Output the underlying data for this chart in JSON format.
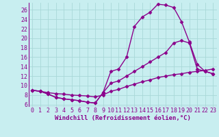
{
  "background_color": "#c8eef0",
  "grid_color": "#a8d8d8",
  "line_color": "#8b008b",
  "marker": "D",
  "markersize": 2.5,
  "linewidth": 1.0,
  "xlim": [
    -0.5,
    23.5
  ],
  "ylim": [
    5.5,
    27.5
  ],
  "yticks": [
    6,
    8,
    10,
    12,
    14,
    16,
    18,
    20,
    22,
    24,
    26
  ],
  "xticks": [
    0,
    1,
    2,
    3,
    4,
    5,
    6,
    7,
    8,
    9,
    10,
    11,
    12,
    13,
    14,
    15,
    16,
    17,
    18,
    19,
    20,
    21,
    22,
    23
  ],
  "xlabel": "Windchill (Refroidissement éolien,°C)",
  "xlabel_fontsize": 6.5,
  "tick_fontsize": 6.0,
  "series1_x": [
    0,
    1,
    2,
    3,
    4,
    5,
    6,
    7,
    8,
    9,
    10,
    11,
    12,
    13,
    14,
    15,
    16,
    17,
    18,
    19,
    20,
    21,
    22,
    23
  ],
  "series1_y": [
    9.0,
    8.8,
    8.2,
    7.5,
    7.2,
    7.0,
    6.8,
    6.5,
    6.3,
    8.5,
    13.0,
    13.5,
    16.0,
    22.5,
    24.5,
    25.5,
    27.2,
    27.0,
    26.5,
    23.5,
    19.2,
    14.5,
    13.0,
    12.5
  ],
  "series2_x": [
    0,
    1,
    2,
    3,
    4,
    5,
    6,
    7,
    8,
    9,
    10,
    11,
    12,
    13,
    14,
    15,
    16,
    17,
    18,
    19,
    20,
    21,
    22,
    23
  ],
  "series2_y": [
    9.0,
    8.8,
    8.2,
    7.5,
    7.2,
    7.0,
    6.8,
    6.5,
    6.3,
    8.5,
    10.5,
    11.0,
    12.0,
    13.0,
    14.0,
    15.0,
    16.0,
    17.0,
    19.0,
    19.5,
    19.0,
    13.5,
    13.0,
    12.5
  ],
  "series3_x": [
    0,
    1,
    2,
    3,
    4,
    5,
    6,
    7,
    8,
    9,
    10,
    11,
    12,
    13,
    14,
    15,
    16,
    17,
    18,
    19,
    20,
    21,
    22,
    23
  ],
  "series3_y": [
    9.0,
    8.8,
    8.5,
    8.3,
    8.2,
    8.0,
    7.9,
    7.8,
    7.6,
    8.0,
    8.8,
    9.2,
    9.8,
    10.3,
    10.8,
    11.2,
    11.7,
    12.0,
    12.3,
    12.5,
    12.8,
    13.0,
    13.2,
    13.5
  ]
}
